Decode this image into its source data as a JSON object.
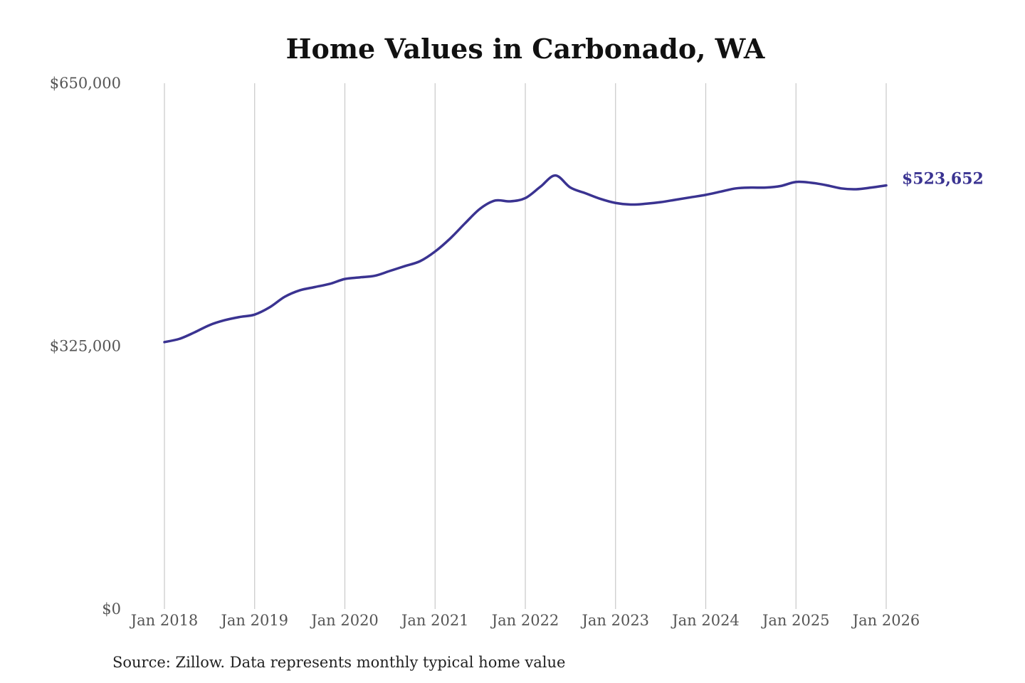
{
  "chart_data": {
    "type": "line",
    "title": "Home Values in Carbonado, WA",
    "xlabel": "",
    "ylabel": "",
    "source": "Source: Zillow. Data represents monthly typical home value",
    "x_tick_labels": [
      "Jan 2018",
      "Jan 2019",
      "Jan 2020",
      "Jan 2021",
      "Jan 2022",
      "Jan 2023",
      "Jan 2024",
      "Jan 2025",
      "Jan 2026"
    ],
    "y_tick_labels": [
      "$0",
      "$325,000",
      "$650,000"
    ],
    "y_ticks": [
      0,
      325000,
      650000
    ],
    "ylim": [
      0,
      650000
    ],
    "xlim": [
      "2018-01",
      "2026-01"
    ],
    "grid": "vertical",
    "line_color": "#3a3391",
    "end_label": "$523,652",
    "series": [
      {
        "x": [
          "2018-01",
          "2018-03",
          "2018-05",
          "2018-07",
          "2018-09",
          "2018-11",
          "2019-01",
          "2019-03",
          "2019-05",
          "2019-07",
          "2019-09",
          "2019-11",
          "2020-01",
          "2020-03",
          "2020-05",
          "2020-07",
          "2020-09",
          "2020-11",
          "2021-01",
          "2021-03",
          "2021-05",
          "2021-07",
          "2021-09",
          "2021-11",
          "2022-01",
          "2022-03",
          "2022-05",
          "2022-07",
          "2022-09",
          "2022-11",
          "2023-01",
          "2023-03",
          "2023-05",
          "2023-07",
          "2023-09",
          "2023-11",
          "2024-01",
          "2024-03",
          "2024-05",
          "2024-07",
          "2024-09",
          "2024-11",
          "2025-01",
          "2025-03",
          "2025-05",
          "2025-07",
          "2025-09",
          "2025-11",
          "2026-01"
        ],
        "values": [
          330000,
          334000,
          342000,
          351000,
          357000,
          361000,
          364000,
          373000,
          386000,
          394000,
          398000,
          402000,
          408000,
          410000,
          412000,
          418000,
          424000,
          430000,
          442000,
          458000,
          477000,
          495000,
          505000,
          504000,
          508000,
          522000,
          536000,
          521000,
          514000,
          507000,
          502000,
          500000,
          501000,
          503000,
          506000,
          509000,
          512000,
          516000,
          520000,
          521000,
          521000,
          523000,
          528000,
          527000,
          524000,
          520000,
          519000,
          521000,
          523652
        ]
      }
    ]
  }
}
